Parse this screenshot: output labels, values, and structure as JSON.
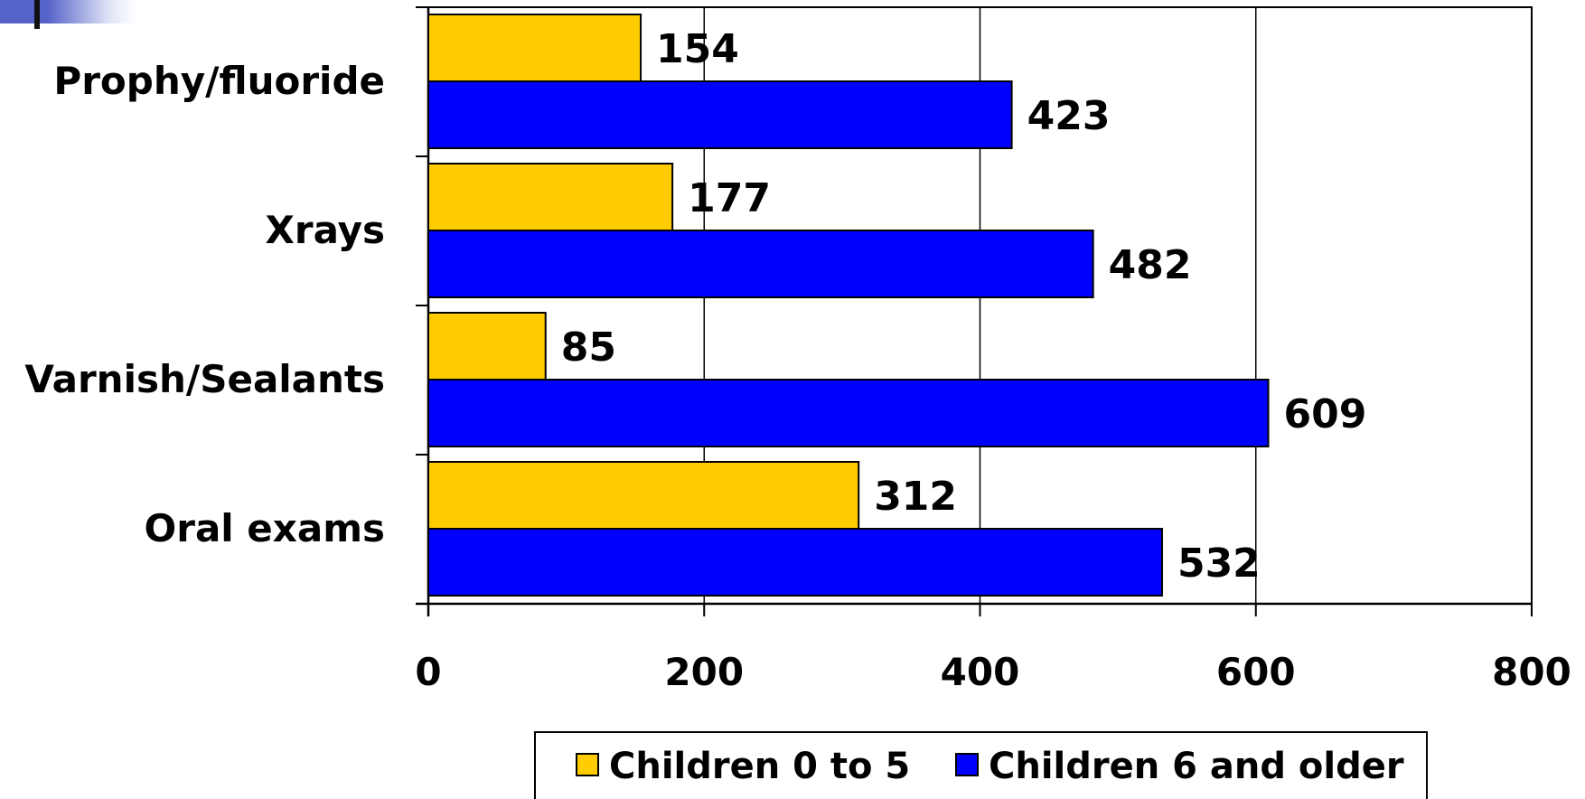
{
  "chart_data": {
    "type": "bar",
    "orientation": "horizontal",
    "categories": [
      "Prophy/fluoride",
      "Xrays",
      "Varnish/Sealants",
      "Oral exams"
    ],
    "series": [
      {
        "name": "Children 0 to 5",
        "color": "#FFCC00",
        "values": [
          154,
          177,
          85,
          312
        ]
      },
      {
        "name": "Children 6 and older",
        "color": "#0000FF",
        "values": [
          423,
          482,
          609,
          532
        ]
      }
    ],
    "xlim": [
      0,
      800
    ],
    "xticks": [
      0,
      200,
      400,
      600,
      800
    ],
    "grid": true,
    "legend_position": "bottom"
  }
}
